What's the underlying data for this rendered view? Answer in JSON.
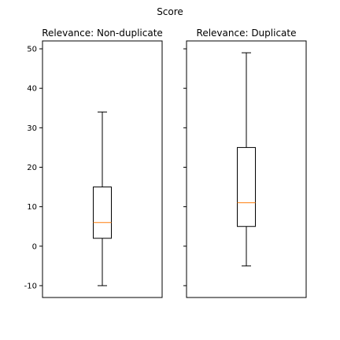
{
  "chart_data": {
    "type": "boxplot",
    "title": "Score",
    "shared_y": true,
    "ylim": [
      -13,
      52
    ],
    "yticks": [
      -10,
      0,
      10,
      20,
      30,
      40,
      50
    ],
    "median_color": "#ff7f0e",
    "panels": [
      {
        "title": "Relevance: Non-duplicate",
        "whisker_low": -10,
        "q1": 2,
        "median": 6,
        "q3": 15,
        "whisker_high": 34
      },
      {
        "title": "Relevance: Duplicate",
        "whisker_low": -5,
        "q1": 5,
        "median": 11,
        "q3": 25,
        "whisker_high": 49
      }
    ]
  }
}
